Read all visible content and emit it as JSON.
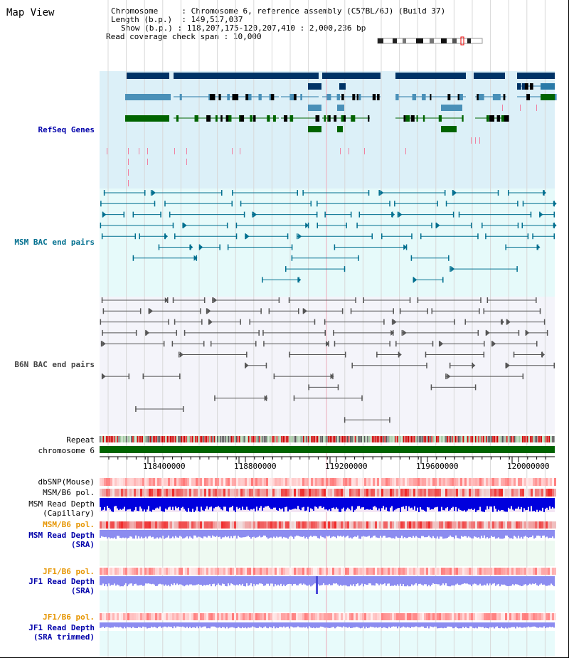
{
  "page": {
    "title": "Map View"
  },
  "header": {
    "chromosome": {
      "key": "Chromosome",
      "value": "Chromosome 6, reference assembly (C57BL/6J) (Build 37)"
    },
    "length": {
      "key": "Length (b.p.)",
      "value": "149,517,037"
    },
    "show": {
      "key": "Show (b.p.)",
      "value": "118,207,175-120,207,410 : 2,000,236 bp"
    },
    "span": {
      "key": "Read coverage check span",
      "value": "10,000"
    }
  },
  "tracks": {
    "refseq": "RefSeq Genes",
    "msm_bac": "MSM BAC end pairs",
    "b6n_bac": "B6N BAC end pairs",
    "repeat": "Repeat",
    "chromosome": "chromosome 6",
    "dbsnp": "dbSNP(Mouse)",
    "msm_pol_1": "MSM/B6 pol.",
    "msm_depth_cap": "MSM Read Depth\n(Capillary)",
    "msm_pol_2": "MSM/B6 pol.",
    "msm_depth_sra": "MSM Read Depth\n(SRA)",
    "jf1_pol_1": "JF1/B6 pol.",
    "jf1_depth_sra": "JF1 Read Depth\n(SRA)",
    "jf1_pol_2": "JF1/B6 pol.",
    "jf1_depth_trim": "JF1 Read Depth\n(SRA trimmed)"
  },
  "axis": {
    "ticks": [
      "118400000",
      "118800000",
      "119200000",
      "119600000",
      "120000000"
    ]
  },
  "colors": {
    "refseq_bg": "#dcf0f8",
    "msm_bg": "#e6fafa",
    "b6n_bg": "#f4f4fa",
    "gene_dark": "#003366",
    "gene_mid": "#4a90b8",
    "gene_green": "#006400",
    "msm_line": "#006f8f",
    "b6n_line": "#555555",
    "chrom": "#006400",
    "cap_depth": "#0000dd",
    "sra_depth": "#8c8cf0",
    "label_blue": "#0000aa",
    "label_teal": "#006f8f",
    "label_gray": "#444444",
    "label_orange": "#e69500"
  }
}
